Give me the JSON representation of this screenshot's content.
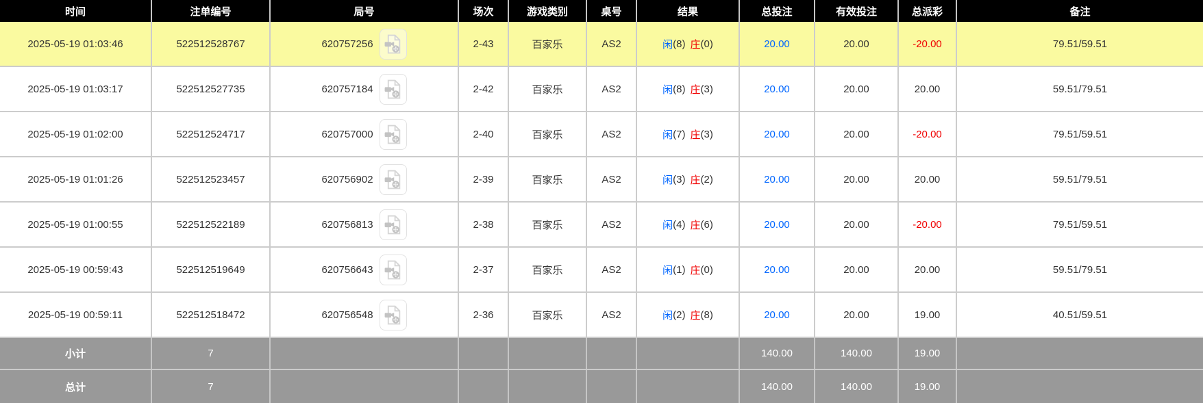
{
  "table": {
    "columns": [
      {
        "key": "time",
        "label": "时间"
      },
      {
        "key": "bet_id",
        "label": "注单编号"
      },
      {
        "key": "round",
        "label": "局号"
      },
      {
        "key": "session",
        "label": "场次"
      },
      {
        "key": "game",
        "label": "游戏类别"
      },
      {
        "key": "table_no",
        "label": "桌号"
      },
      {
        "key": "result",
        "label": "结果"
      },
      {
        "key": "total_bet",
        "label": "总投注"
      },
      {
        "key": "valid_bet",
        "label": "有效投注"
      },
      {
        "key": "payout",
        "label": "总派彩"
      },
      {
        "key": "remark",
        "label": "备注"
      }
    ],
    "video_icon": "video-file-icon",
    "rows": [
      {
        "time": "2025-05-19 01:03:46",
        "bet_id": "522512528767",
        "round": "620757256",
        "session": "2-43",
        "game": "百家乐",
        "table_no": "AS2",
        "result": {
          "player": "闲",
          "player_pts": "(8)",
          "banker": "庄",
          "banker_pts": "(0)"
        },
        "total_bet": "20.00",
        "valid_bet": "20.00",
        "payout": "-20.00",
        "payout_negative": true,
        "remark": "79.51/59.51",
        "highlighted": true
      },
      {
        "time": "2025-05-19 01:03:17",
        "bet_id": "522512527735",
        "round": "620757184",
        "session": "2-42",
        "game": "百家乐",
        "table_no": "AS2",
        "result": {
          "player": "闲",
          "player_pts": "(8)",
          "banker": "庄",
          "banker_pts": "(3)"
        },
        "total_bet": "20.00",
        "valid_bet": "20.00",
        "payout": "20.00",
        "payout_negative": false,
        "remark": "59.51/79.51",
        "highlighted": false
      },
      {
        "time": "2025-05-19 01:02:00",
        "bet_id": "522512524717",
        "round": "620757000",
        "session": "2-40",
        "game": "百家乐",
        "table_no": "AS2",
        "result": {
          "player": "闲",
          "player_pts": "(7)",
          "banker": "庄",
          "banker_pts": "(3)"
        },
        "total_bet": "20.00",
        "valid_bet": "20.00",
        "payout": "-20.00",
        "payout_negative": true,
        "remark": "79.51/59.51",
        "highlighted": false
      },
      {
        "time": "2025-05-19 01:01:26",
        "bet_id": "522512523457",
        "round": "620756902",
        "session": "2-39",
        "game": "百家乐",
        "table_no": "AS2",
        "result": {
          "player": "闲",
          "player_pts": "(3)",
          "banker": "庄",
          "banker_pts": "(2)"
        },
        "total_bet": "20.00",
        "valid_bet": "20.00",
        "payout": "20.00",
        "payout_negative": false,
        "remark": "59.51/79.51",
        "highlighted": false
      },
      {
        "time": "2025-05-19 01:00:55",
        "bet_id": "522512522189",
        "round": "620756813",
        "session": "2-38",
        "game": "百家乐",
        "table_no": "AS2",
        "result": {
          "player": "闲",
          "player_pts": "(4)",
          "banker": "庄",
          "banker_pts": "(6)"
        },
        "total_bet": "20.00",
        "valid_bet": "20.00",
        "payout": "-20.00",
        "payout_negative": true,
        "remark": "79.51/59.51",
        "highlighted": false
      },
      {
        "time": "2025-05-19 00:59:43",
        "bet_id": "522512519649",
        "round": "620756643",
        "session": "2-37",
        "game": "百家乐",
        "table_no": "AS2",
        "result": {
          "player": "闲",
          "player_pts": "(1)",
          "banker": "庄",
          "banker_pts": "(0)"
        },
        "total_bet": "20.00",
        "valid_bet": "20.00",
        "payout": "20.00",
        "payout_negative": false,
        "remark": "59.51/79.51",
        "highlighted": false
      },
      {
        "time": "2025-05-19 00:59:11",
        "bet_id": "522512518472",
        "round": "620756548",
        "session": "2-36",
        "game": "百家乐",
        "table_no": "AS2",
        "result": {
          "player": "闲",
          "player_pts": "(2)",
          "banker": "庄",
          "banker_pts": "(8)"
        },
        "total_bet": "20.00",
        "valid_bet": "20.00",
        "payout": "19.00",
        "payout_negative": false,
        "remark": "40.51/59.51",
        "highlighted": false
      }
    ],
    "footer": [
      {
        "label": "小计",
        "count": "7",
        "total_bet": "140.00",
        "valid_bet": "140.00",
        "payout": "19.00"
      },
      {
        "label": "总计",
        "count": "7",
        "total_bet": "140.00",
        "valid_bet": "140.00",
        "payout": "19.00"
      }
    ],
    "colors": {
      "header_bg": "#000000",
      "highlight_row": "#fafaa0",
      "footer_bg": "#999999",
      "bet_blue": "#0066ff",
      "negative_red": "#f00000",
      "grid_border": "#cccccc"
    }
  }
}
